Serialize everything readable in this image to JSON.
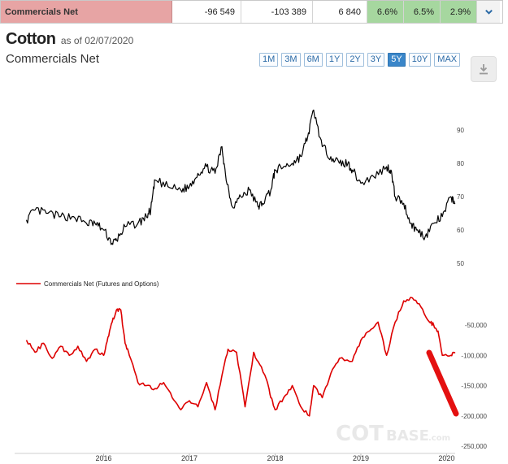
{
  "row": {
    "name": "Commercials Net",
    "v1": "-96 549",
    "v2": "-103 389",
    "v3": "6 840",
    "p1": "6.6%",
    "p2": "6.5%",
    "p3": "2.9%"
  },
  "header": {
    "symbol": "Cotton",
    "as_of": "as of 02/07/2020",
    "subtitle": "Commercials Net"
  },
  "ranges": [
    {
      "label": "1M",
      "active": false
    },
    {
      "label": "3M",
      "active": false
    },
    {
      "label": "6M",
      "active": false
    },
    {
      "label": "1Y",
      "active": false
    },
    {
      "label": "2Y",
      "active": false
    },
    {
      "label": "3Y",
      "active": false
    },
    {
      "label": "5Y",
      "active": true
    },
    {
      "label": "10Y",
      "active": false
    },
    {
      "label": "MAX",
      "active": false
    }
  ],
  "colors": {
    "price": "#000000",
    "positions": "#dd0000",
    "accent": "#3a86c9"
  },
  "watermark": {
    "part1": "COT",
    "part2": "BASE",
    "suffix": ".com"
  },
  "chart_data": [
    {
      "type": "line",
      "series": [
        {
          "x": [
            2015.1,
            2015.2,
            2015.35,
            2015.5,
            2015.65,
            2015.8,
            2015.9,
            2016.0,
            2016.1,
            2016.15,
            2016.25,
            2016.4,
            2016.5,
            2016.55,
            2016.6,
            2016.75,
            2016.9,
            2017.0,
            2017.1,
            2017.2,
            2017.3,
            2017.38,
            2017.42,
            2017.5,
            2017.6,
            2017.7,
            2017.8,
            2017.85,
            2017.95,
            2018.0,
            2018.1,
            2018.2,
            2018.3,
            2018.38,
            2018.45,
            2018.55,
            2018.65,
            2018.75,
            2018.85,
            2018.9,
            2019.0,
            2019.15,
            2019.3,
            2019.35,
            2019.4,
            2019.5,
            2019.58,
            2019.65,
            2019.75,
            2019.85,
            2019.95,
            2020.05,
            2020.1
          ],
          "values": [
            63,
            66,
            65,
            64,
            64,
            62,
            62,
            60,
            56,
            57,
            61,
            62,
            64,
            66,
            75,
            73,
            72,
            73,
            77,
            79,
            77,
            85,
            77,
            67,
            70,
            72,
            67,
            68,
            72,
            78,
            79,
            80,
            82,
            88,
            96,
            85,
            82,
            80,
            80,
            78,
            74,
            76,
            79,
            78,
            70,
            68,
            62,
            60,
            58,
            62,
            64,
            70,
            68
          ]
        }
      ],
      "ylim": [
        50,
        95
      ]
    },
    {
      "type": "line",
      "series": [
        {
          "name": "Commercials Net (Futures and Options)",
          "x": [
            2015.1,
            2015.2,
            2015.3,
            2015.4,
            2015.5,
            2015.6,
            2015.7,
            2015.8,
            2015.9,
            2016.0,
            2016.05,
            2016.1,
            2016.15,
            2016.2,
            2016.25,
            2016.3,
            2016.4,
            2016.5,
            2016.6,
            2016.7,
            2016.8,
            2016.9,
            2017.0,
            2017.1,
            2017.2,
            2017.3,
            2017.4,
            2017.45,
            2017.55,
            2017.65,
            2017.75,
            2017.8,
            2017.9,
            2017.95,
            2018.0,
            2018.1,
            2018.2,
            2018.3,
            2018.4,
            2018.45,
            2018.55,
            2018.65,
            2018.75,
            2018.9,
            2019.0,
            2019.1,
            2019.2,
            2019.3,
            2019.4,
            2019.5,
            2019.6,
            2019.7,
            2019.8,
            2019.85,
            2019.9,
            2019.95,
            2020.05,
            2020.1
          ],
          "values": [
            -75000,
            -95000,
            -80000,
            -105000,
            -85000,
            -100000,
            -85000,
            -110000,
            -90000,
            -100000,
            -70000,
            -45000,
            -25000,
            -25000,
            -80000,
            -100000,
            -145000,
            -150000,
            -155000,
            -145000,
            -170000,
            -190000,
            -175000,
            -185000,
            -145000,
            -190000,
            -120000,
            -90000,
            -95000,
            -185000,
            -95000,
            -110000,
            -140000,
            -170000,
            -190000,
            -170000,
            -150000,
            -185000,
            -200000,
            -150000,
            -170000,
            -130000,
            -105000,
            -110000,
            -75000,
            -60000,
            -45000,
            -100000,
            -45000,
            -10000,
            -5000,
            -20000,
            -45000,
            -50000,
            -60000,
            -100000,
            -100000,
            -95000
          ]
        }
      ],
      "ylim": [
        -250000,
        0
      ]
    }
  ],
  "price_axis": {
    "ticks": [
      "90",
      "80",
      "70",
      "60",
      "50"
    ]
  },
  "pos_axis": {
    "ticks": [
      "-50,000",
      "-100,000",
      "-150,000",
      "-200,000",
      "-250,000"
    ]
  },
  "x_axis": {
    "ticks": [
      "2016",
      "2017",
      "2018",
      "2019",
      "2020"
    ]
  }
}
